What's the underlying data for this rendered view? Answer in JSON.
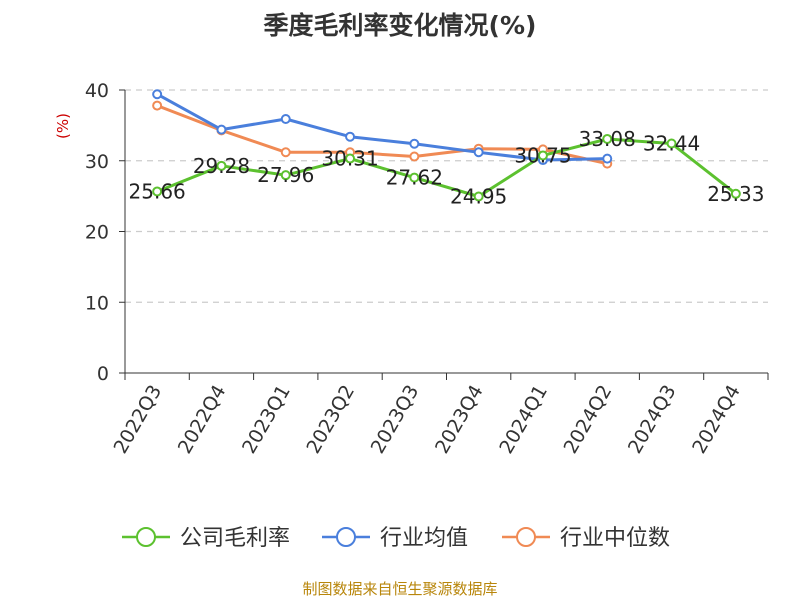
{
  "chart_data": {
    "type": "line",
    "title": "季度毛利率变化情况(%)",
    "ylabel": "(%)",
    "xlabel": "",
    "ylim": [
      0,
      40
    ],
    "yticks": [
      0,
      10,
      20,
      30,
      40
    ],
    "grid": true,
    "legend_position": "bottom",
    "categories": [
      "2022Q3",
      "2022Q4",
      "2023Q1",
      "2023Q2",
      "2023Q3",
      "2023Q4",
      "2024Q1",
      "2024Q2",
      "2024Q3",
      "2024Q4"
    ],
    "series": [
      {
        "name": "公司毛利率",
        "color": "#5cc12f",
        "values": [
          25.66,
          29.28,
          27.96,
          30.31,
          27.62,
          24.95,
          30.75,
          33.08,
          32.44,
          25.33
        ],
        "labels": [
          "25.66",
          "29.28",
          "27.96",
          "30.31",
          "27.62",
          "24.95",
          "30.75",
          "33.08",
          "32.44",
          "25.33"
        ]
      },
      {
        "name": "行业均值",
        "color": "#4a7fdc",
        "values": [
          39.4,
          34.4,
          35.9,
          33.4,
          32.4,
          31.2,
          30.1,
          30.3,
          null,
          null
        ]
      },
      {
        "name": "行业中位数",
        "color": "#f08a54",
        "values": [
          37.8,
          34.3,
          31.2,
          31.2,
          30.6,
          31.7,
          31.6,
          29.6,
          null,
          null
        ]
      }
    ]
  },
  "source_text": "制图数据来自恒生聚源数据库"
}
